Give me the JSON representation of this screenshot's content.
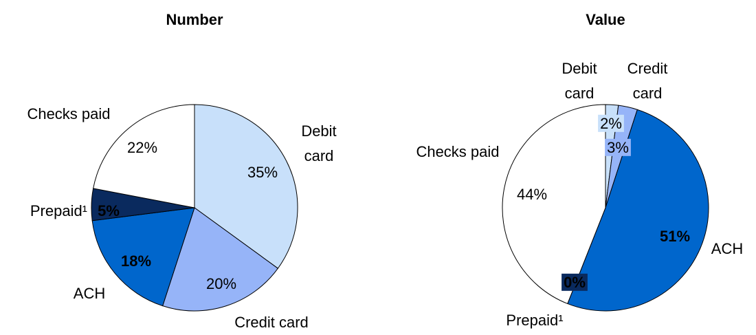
{
  "chart_data": [
    {
      "type": "pie",
      "title": "Number",
      "categories": [
        "Debit card",
        "Credit card",
        "ACH",
        "Prepaid¹",
        "Checks paid"
      ],
      "values": [
        35,
        20,
        18,
        5,
        22
      ],
      "value_labels": [
        "35%",
        "20%",
        "18%",
        "5%",
        "22%"
      ],
      "colors": [
        "#c8e0fa",
        "#96b4f8",
        "#0066cc",
        "#0a2a5e",
        "#ffffff"
      ]
    },
    {
      "type": "pie",
      "title": "Value",
      "categories": [
        "Debit card",
        "Credit card",
        "ACH",
        "Prepaid¹",
        "Checks paid"
      ],
      "values": [
        2,
        3,
        51,
        0,
        44
      ],
      "value_labels": [
        "2%",
        "3%",
        "51%",
        "0%",
        "44%"
      ],
      "colors": [
        "#c8e0fa",
        "#96b4f8",
        "#0066cc",
        "#0a2a5e",
        "#ffffff"
      ]
    }
  ]
}
